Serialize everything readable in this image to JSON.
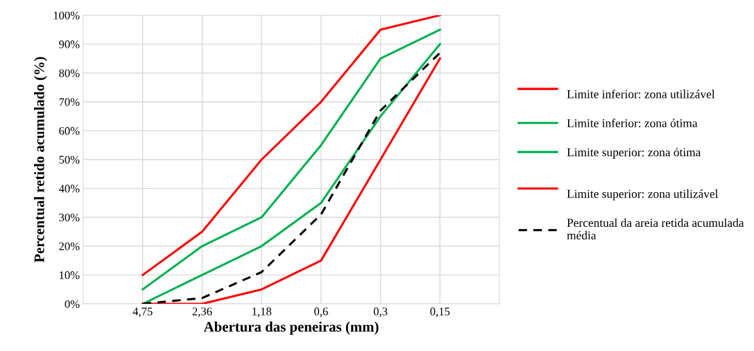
{
  "chart_data": {
    "type": "line",
    "xlabel": "Abertura das peneiras (mm)",
    "ylabel": "Percentual retido acumulado (%)",
    "categories": [
      null,
      "4,75",
      "2,36",
      "1,18",
      "0,6",
      "0,3",
      "0,15",
      null
    ],
    "series": [
      {
        "name": "Limite inferior: zona utilizável",
        "color": "#ff0000",
        "values": [
          null,
          10,
          25,
          50,
          70,
          95,
          100,
          null
        ]
      },
      {
        "name": "Limite inferior: zona ótima",
        "color": "#00b050",
        "values": [
          null,
          5,
          20,
          30,
          55,
          85,
          95,
          null
        ]
      },
      {
        "name": "Limite superior: zona ótima",
        "color": "#00b050",
        "values": [
          null,
          0,
          10,
          20,
          35,
          65,
          90,
          null
        ]
      },
      {
        "name": "Limite superior: zona utilizável",
        "color": "#ff0000",
        "values": [
          null,
          0,
          0,
          5,
          15,
          50,
          85,
          null
        ]
      },
      {
        "name": "Percentual da areia retida acumulada média",
        "color": "#000000",
        "line_style": "dashed",
        "values": [
          null,
          0,
          2,
          11,
          31,
          67,
          87,
          null
        ]
      }
    ],
    "ylim": [
      0,
      100
    ],
    "yticks": [
      {
        "value": 0,
        "label": "0%"
      },
      {
        "value": 10,
        "label": "10%"
      },
      {
        "value": 20,
        "label": "20%"
      },
      {
        "value": 30,
        "label": "30%"
      },
      {
        "value": 40,
        "label": "40%"
      },
      {
        "value": 50,
        "label": "50%"
      },
      {
        "value": 60,
        "label": "60%"
      },
      {
        "value": 70,
        "label": "70%"
      },
      {
        "value": 80,
        "label": "80%"
      },
      {
        "value": 90,
        "label": "90%"
      },
      {
        "value": 100,
        "label": "100%"
      }
    ],
    "grid": true,
    "legend": "right",
    "marker": "none",
    "line_style": "solid"
  }
}
